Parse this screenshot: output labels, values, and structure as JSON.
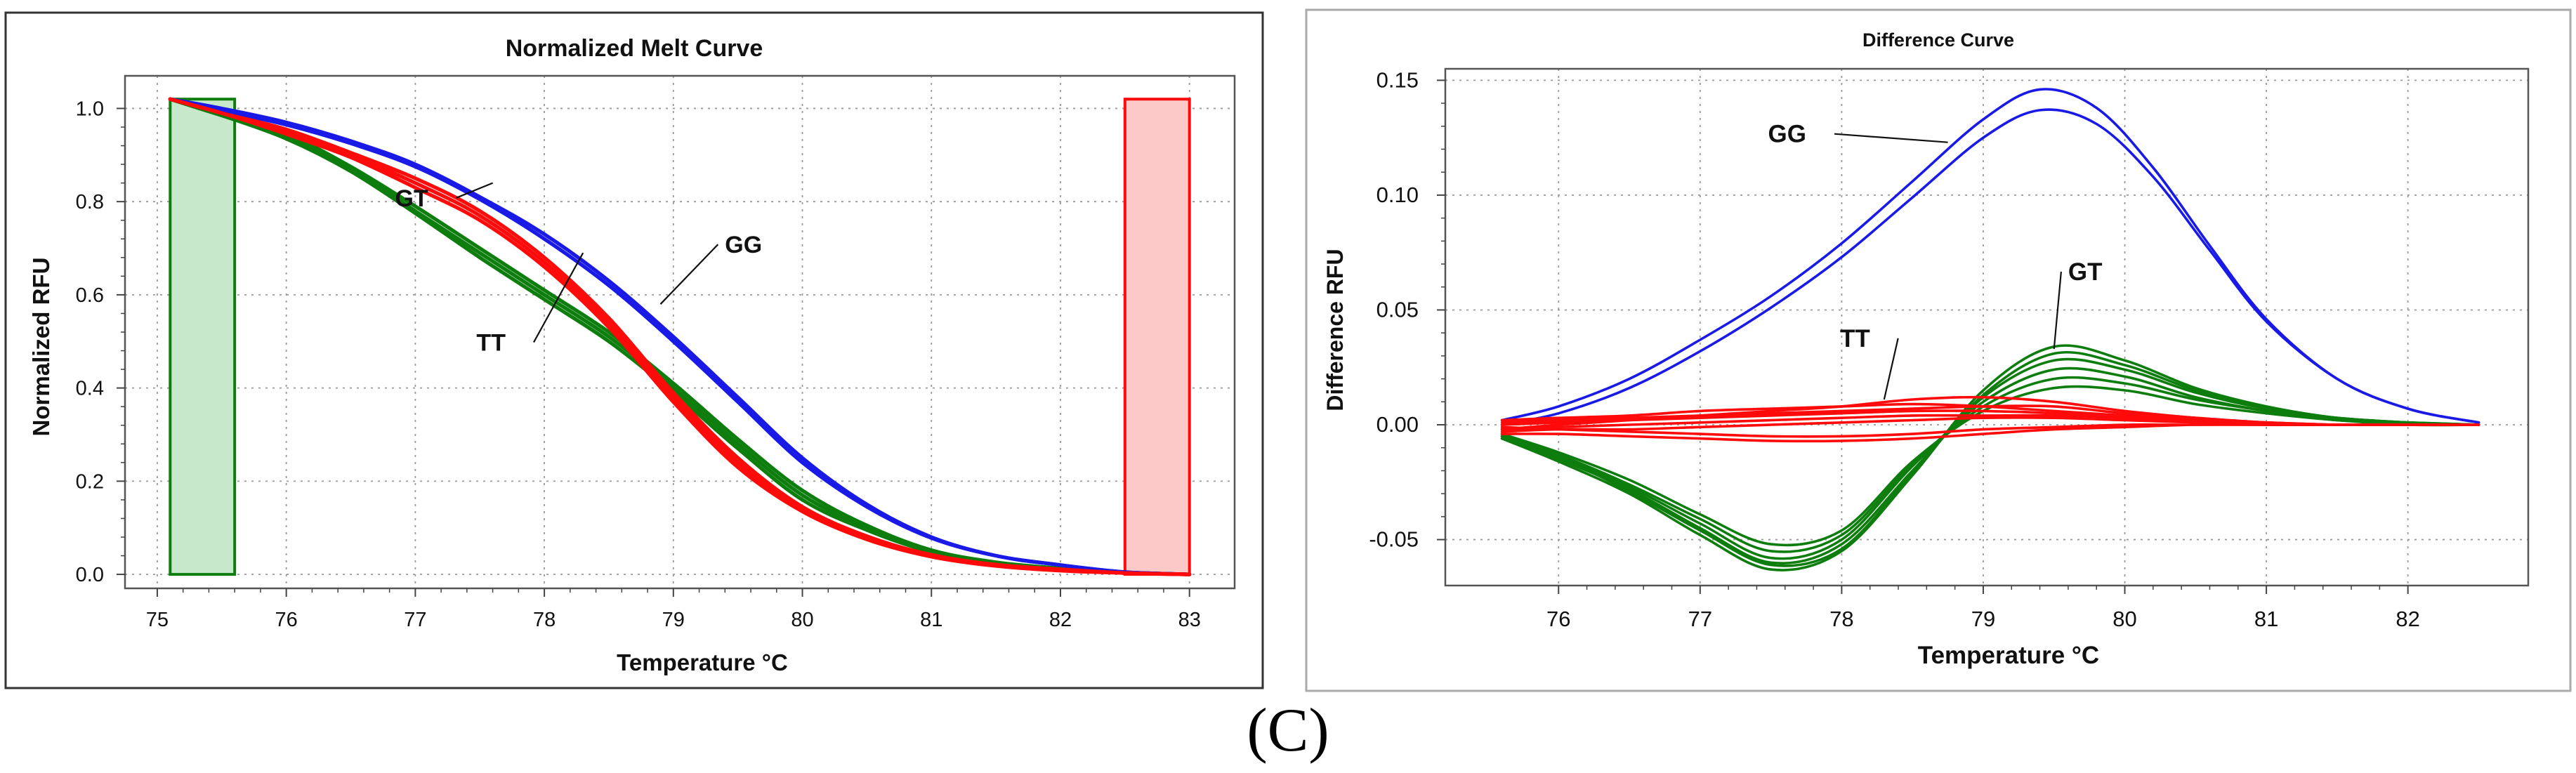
{
  "caption": "(C)",
  "colors": {
    "GG": "#1a1ae6",
    "GT": "#0d7d0d",
    "TT": "#ff0a0a",
    "green_region": "#c8e8cc",
    "red_region": "#fcc8c8"
  },
  "chart_data": [
    {
      "type": "line",
      "title": "Normalized Melt Curve",
      "xlabel": "Temperature °C",
      "ylabel": "Normalized RFU",
      "xlim": [
        74.75,
        83.35
      ],
      "ylim": [
        -0.03,
        1.07
      ],
      "xticks": [
        "75",
        "76",
        "77",
        "78",
        "79",
        "80",
        "81",
        "82",
        "83"
      ],
      "yticks": [
        "0.0",
        "0.2",
        "0.4",
        "0.6",
        "0.8",
        "1.0"
      ],
      "grid": true,
      "regions": [
        {
          "name": "pre-melt",
          "x": [
            75.1,
            75.6
          ],
          "color": "green"
        },
        {
          "name": "post-melt",
          "x": [
            82.5,
            83.0
          ],
          "color": "red"
        }
      ],
      "annotations": [
        {
          "label": "GT",
          "at": [
            77.1,
            0.79
          ],
          "target": [
            77.6,
            0.84
          ]
        },
        {
          "label": "TT",
          "at": [
            77.7,
            0.48
          ],
          "target": [
            78.3,
            0.69
          ]
        },
        {
          "label": "GG",
          "at": [
            79.4,
            0.69
          ],
          "target": [
            78.9,
            0.58
          ]
        }
      ],
      "series": [
        {
          "name": "GG",
          "color": "GG",
          "x": [
            75.1,
            75.5,
            76,
            76.5,
            77,
            77.5,
            78,
            78.5,
            79,
            79.5,
            80,
            80.5,
            81,
            81.5,
            82,
            82.5,
            83
          ],
          "y": [
            1.02,
            1.0,
            0.97,
            0.93,
            0.88,
            0.81,
            0.73,
            0.63,
            0.51,
            0.38,
            0.25,
            0.15,
            0.08,
            0.04,
            0.02,
            0.005,
            0.0
          ]
        },
        {
          "name": "GG",
          "color": "GG",
          "x": [
            75.1,
            75.5,
            76,
            76.5,
            77,
            77.5,
            78,
            78.5,
            79,
            79.5,
            80,
            80.5,
            81,
            81.5,
            82,
            82.5,
            83
          ],
          "y": [
            1.02,
            0.995,
            0.965,
            0.925,
            0.875,
            0.805,
            0.72,
            0.62,
            0.5,
            0.37,
            0.24,
            0.145,
            0.078,
            0.04,
            0.02,
            0.005,
            0.0
          ]
        },
        {
          "name": "TT",
          "color": "TT",
          "x": [
            75.1,
            75.5,
            76,
            76.5,
            77,
            77.5,
            78,
            78.5,
            79,
            79.5,
            80,
            80.5,
            81,
            81.5,
            82,
            82.5,
            83
          ],
          "y": [
            1.02,
            0.99,
            0.95,
            0.9,
            0.84,
            0.77,
            0.67,
            0.54,
            0.38,
            0.24,
            0.14,
            0.08,
            0.04,
            0.02,
            0.01,
            0.003,
            0.0
          ]
        },
        {
          "name": "TT",
          "color": "TT",
          "x": [
            75.1,
            75.5,
            76,
            76.5,
            77,
            77.5,
            78,
            78.5,
            79,
            79.5,
            80,
            80.5,
            81,
            81.5,
            82,
            82.5,
            83
          ],
          "y": [
            1.02,
            0.99,
            0.945,
            0.895,
            0.83,
            0.76,
            0.66,
            0.53,
            0.37,
            0.23,
            0.135,
            0.075,
            0.038,
            0.018,
            0.008,
            0.003,
            0.0
          ]
        },
        {
          "name": "TT",
          "color": "TT",
          "x": [
            75.1,
            75.5,
            76,
            76.5,
            77,
            77.5,
            78,
            78.5,
            79,
            79.5,
            80,
            80.5,
            81,
            81.5,
            82,
            82.5,
            83
          ],
          "y": [
            1.02,
            0.99,
            0.955,
            0.905,
            0.85,
            0.78,
            0.68,
            0.55,
            0.39,
            0.25,
            0.145,
            0.082,
            0.042,
            0.021,
            0.011,
            0.003,
            0.0
          ]
        },
        {
          "name": "GT",
          "color": "GT",
          "x": [
            75.1,
            75.5,
            76,
            76.5,
            77,
            77.5,
            78,
            78.5,
            79,
            79.5,
            80,
            80.5,
            81,
            81.5,
            82,
            82.5,
            83
          ],
          "y": [
            1.02,
            0.985,
            0.94,
            0.87,
            0.78,
            0.69,
            0.6,
            0.51,
            0.4,
            0.28,
            0.17,
            0.1,
            0.05,
            0.025,
            0.012,
            0.004,
            0.0
          ]
        },
        {
          "name": "GT",
          "color": "GT",
          "x": [
            75.1,
            75.5,
            76,
            76.5,
            77,
            77.5,
            78,
            78.5,
            79,
            79.5,
            80,
            80.5,
            81,
            81.5,
            82,
            82.5,
            83
          ],
          "y": [
            1.02,
            0.985,
            0.935,
            0.865,
            0.775,
            0.68,
            0.59,
            0.5,
            0.39,
            0.27,
            0.16,
            0.095,
            0.048,
            0.024,
            0.011,
            0.004,
            0.0
          ]
        },
        {
          "name": "GT",
          "color": "GT",
          "x": [
            75.1,
            75.5,
            76,
            76.5,
            77,
            77.5,
            78,
            78.5,
            79,
            79.5,
            80,
            80.5,
            81,
            81.5,
            82,
            82.5,
            83
          ],
          "y": [
            1.02,
            0.985,
            0.945,
            0.875,
            0.79,
            0.7,
            0.61,
            0.52,
            0.41,
            0.29,
            0.18,
            0.105,
            0.052,
            0.026,
            0.013,
            0.004,
            0.0
          ]
        }
      ]
    },
    {
      "type": "line",
      "title": "Difference Curve",
      "xlabel": "Temperature  °C",
      "ylabel": "Difference RFU",
      "xlim": [
        75.2,
        82.85
      ],
      "ylim": [
        -0.07,
        0.155
      ],
      "xticks": [
        "76",
        "77",
        "78",
        "79",
        "80",
        "81",
        "82"
      ],
      "yticks": [
        "-0.05",
        "0.00",
        "0.05",
        "0.10",
        "0.15"
      ],
      "grid": true,
      "annotations": [
        {
          "label": "GG",
          "at": [
            77.75,
            0.123
          ],
          "target": [
            78.75,
            0.123
          ]
        },
        {
          "label": "TT",
          "at": [
            78.2,
            0.034
          ],
          "target": [
            78.3,
            0.011
          ]
        },
        {
          "label": "GT",
          "at": [
            79.6,
            0.063
          ],
          "target": [
            79.5,
            0.033
          ]
        }
      ],
      "series": [
        {
          "name": "GG",
          "color": "GG",
          "x": [
            75.6,
            76,
            76.5,
            77,
            77.5,
            78,
            78.5,
            79,
            79.4,
            79.8,
            80.2,
            80.6,
            81,
            81.5,
            82,
            82.5
          ],
          "y": [
            0.002,
            0.008,
            0.02,
            0.037,
            0.056,
            0.079,
            0.106,
            0.133,
            0.146,
            0.138,
            0.112,
            0.078,
            0.046,
            0.02,
            0.007,
            0.001
          ]
        },
        {
          "name": "GG",
          "color": "GG",
          "x": [
            75.6,
            76,
            76.5,
            77,
            77.5,
            78,
            78.5,
            79,
            79.4,
            79.8,
            80.2,
            80.6,
            81,
            81.5,
            82,
            82.5
          ],
          "y": [
            0.0,
            0.005,
            0.016,
            0.032,
            0.051,
            0.073,
            0.099,
            0.125,
            0.137,
            0.131,
            0.108,
            0.076,
            0.045,
            0.02,
            0.007,
            0.001
          ]
        },
        {
          "name": "GT",
          "color": "GT",
          "x": [
            75.6,
            76,
            76.5,
            77,
            77.5,
            78,
            78.5,
            79,
            79.5,
            80,
            80.5,
            81,
            81.5,
            82,
            82.5
          ],
          "y": [
            -0.006,
            -0.016,
            -0.03,
            -0.048,
            -0.063,
            -0.055,
            -0.022,
            0.015,
            0.034,
            0.028,
            0.016,
            0.008,
            0.003,
            0.001,
            0.0
          ]
        },
        {
          "name": "GT",
          "color": "GT",
          "x": [
            75.6,
            76,
            76.5,
            77,
            77.5,
            78,
            78.5,
            79,
            79.5,
            80,
            80.5,
            81,
            81.5,
            82,
            82.5
          ],
          "y": [
            -0.005,
            -0.015,
            -0.028,
            -0.045,
            -0.06,
            -0.052,
            -0.02,
            0.012,
            0.028,
            0.024,
            0.014,
            0.007,
            0.003,
            0.001,
            0.0
          ]
        },
        {
          "name": "GT",
          "color": "GT",
          "x": [
            75.6,
            76,
            76.5,
            77,
            77.5,
            78,
            78.5,
            79,
            79.5,
            80,
            80.5,
            81,
            81.5,
            82,
            82.5
          ],
          "y": [
            -0.006,
            -0.014,
            -0.027,
            -0.043,
            -0.058,
            -0.05,
            -0.018,
            0.01,
            0.024,
            0.021,
            0.012,
            0.006,
            0.002,
            0.001,
            0.0
          ]
        },
        {
          "name": "GT",
          "color": "GT",
          "x": [
            75.6,
            76,
            76.5,
            77,
            77.5,
            78,
            78.5,
            79,
            79.5,
            80,
            80.5,
            81,
            81.5,
            82,
            82.5
          ],
          "y": [
            -0.005,
            -0.013,
            -0.026,
            -0.041,
            -0.055,
            -0.048,
            -0.017,
            0.008,
            0.02,
            0.018,
            0.011,
            0.006,
            0.002,
            0.001,
            0.0
          ]
        },
        {
          "name": "GT",
          "color": "GT",
          "x": [
            75.6,
            76,
            76.5,
            77,
            77.5,
            78,
            78.5,
            79,
            79.5,
            80,
            80.5,
            81,
            81.5,
            82,
            82.5
          ],
          "y": [
            -0.004,
            -0.012,
            -0.024,
            -0.039,
            -0.052,
            -0.046,
            -0.016,
            0.006,
            0.016,
            0.015,
            0.009,
            0.005,
            0.002,
            0.0,
            0.0
          ]
        },
        {
          "name": "GT",
          "color": "GT",
          "x": [
            75.6,
            76,
            76.5,
            77,
            77.5,
            78,
            78.5,
            79,
            79.5,
            80,
            80.5,
            81,
            81.5,
            82,
            82.5
          ],
          "y": [
            -0.005,
            -0.014,
            -0.029,
            -0.046,
            -0.061,
            -0.054,
            -0.021,
            0.013,
            0.031,
            0.026,
            0.015,
            0.007,
            0.003,
            0.001,
            0.0
          ]
        },
        {
          "name": "TT",
          "color": "TT",
          "x": [
            75.6,
            76,
            76.5,
            77,
            77.5,
            78,
            78.5,
            79,
            79.5,
            80,
            80.5,
            81,
            81.5,
            82,
            82.5
          ],
          "y": [
            -0.002,
            0.0,
            0.002,
            0.004,
            0.006,
            0.008,
            0.011,
            0.012,
            0.01,
            0.006,
            0.003,
            0.001,
            0.0,
            0.0,
            0.0
          ]
        },
        {
          "name": "TT",
          "color": "TT",
          "x": [
            75.6,
            76,
            76.5,
            77,
            77.5,
            78,
            78.5,
            79,
            79.5,
            80,
            80.5,
            81,
            81.5,
            82,
            82.5
          ],
          "y": [
            0.002,
            0.003,
            0.004,
            0.006,
            0.007,
            0.008,
            0.009,
            0.008,
            0.006,
            0.004,
            0.002,
            0.001,
            0.0,
            0.0,
            0.0
          ]
        },
        {
          "name": "TT",
          "color": "TT",
          "x": [
            75.6,
            76,
            76.5,
            77,
            77.5,
            78,
            78.5,
            79,
            79.5,
            80,
            80.5,
            81,
            81.5,
            82,
            82.5
          ],
          "y": [
            0.0,
            0.001,
            0.002,
            0.003,
            0.004,
            0.005,
            0.006,
            0.006,
            0.005,
            0.003,
            0.002,
            0.001,
            0.0,
            0.0,
            0.0
          ]
        },
        {
          "name": "TT",
          "color": "TT",
          "x": [
            75.6,
            76,
            76.5,
            77,
            77.5,
            78,
            78.5,
            79,
            79.5,
            80,
            80.5,
            81,
            81.5,
            82,
            82.5
          ],
          "y": [
            -0.003,
            -0.002,
            -0.002,
            -0.001,
            0.0,
            0.001,
            0.002,
            0.003,
            0.003,
            0.002,
            0.001,
            0.0,
            0.0,
            0.0,
            0.0
          ]
        },
        {
          "name": "TT",
          "color": "TT",
          "x": [
            75.6,
            76,
            76.5,
            77,
            77.5,
            78,
            78.5,
            79,
            79.5,
            80,
            80.5,
            81,
            81.5,
            82,
            82.5
          ],
          "y": [
            -0.001,
            -0.002,
            -0.003,
            -0.004,
            -0.005,
            -0.005,
            -0.004,
            -0.002,
            -0.001,
            0.0,
            0.0,
            0.0,
            0.0,
            0.0,
            0.0
          ]
        },
        {
          "name": "TT",
          "color": "TT",
          "x": [
            75.6,
            76,
            76.5,
            77,
            77.5,
            78,
            78.5,
            79,
            79.5,
            80,
            80.5,
            81,
            81.5,
            82,
            82.5
          ],
          "y": [
            -0.004,
            -0.004,
            -0.005,
            -0.006,
            -0.007,
            -0.007,
            -0.006,
            -0.004,
            -0.002,
            -0.001,
            0.0,
            0.0,
            0.0,
            0.0,
            0.0
          ]
        },
        {
          "name": "TT",
          "color": "TT",
          "x": [
            75.6,
            76,
            76.5,
            77,
            77.5,
            78,
            78.5,
            79,
            79.5,
            80,
            80.5,
            81,
            81.5,
            82,
            82.5
          ],
          "y": [
            0.001,
            0.002,
            0.003,
            0.004,
            0.005,
            0.006,
            0.007,
            0.008,
            0.008,
            0.005,
            0.003,
            0.001,
            0.0,
            0.0,
            0.0
          ]
        },
        {
          "name": "TT",
          "color": "TT",
          "x": [
            75.6,
            76,
            76.5,
            77,
            77.5,
            78,
            78.5,
            79,
            79.5,
            80,
            80.5,
            81,
            81.5,
            82,
            82.5
          ],
          "y": [
            -0.002,
            -0.001,
            0.0,
            0.001,
            0.002,
            0.003,
            0.004,
            0.004,
            0.004,
            0.003,
            0.001,
            0.0,
            0.0,
            0.0,
            0.0
          ]
        }
      ]
    }
  ]
}
